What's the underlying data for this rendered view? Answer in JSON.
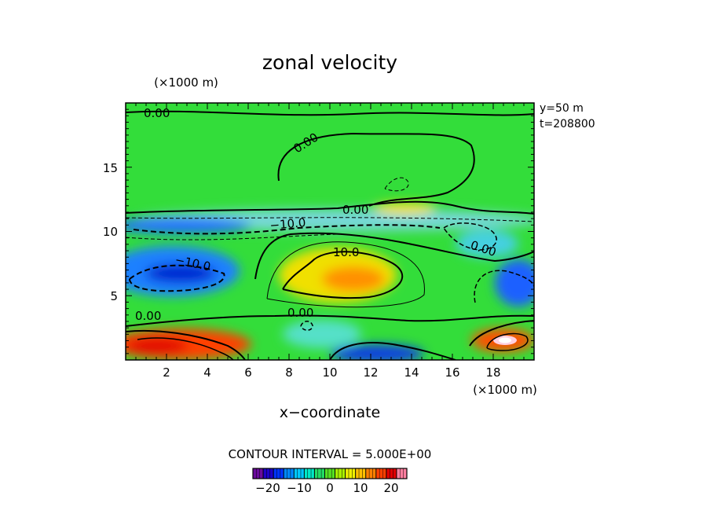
{
  "chart_data": {
    "type": "heatmap",
    "title": "zonal velocity",
    "xlabel": "x−coordinate",
    "x_unit": "(×1000 m)",
    "y_unit": "(×1000 m)",
    "xlim": [
      0,
      20
    ],
    "ylim": [
      0,
      20
    ],
    "x_ticks": [
      "2",
      "4",
      "6",
      "8",
      "10",
      "12",
      "14",
      "16",
      "18"
    ],
    "y_ticks": [
      "5",
      "10",
      "15"
    ],
    "info": [
      "y=50 m",
      "t=208800"
    ],
    "contour_interval": "CONTOUR INTERVAL = 5.000E+00",
    "colorbar": {
      "range": [
        -27,
        27
      ],
      "ticks": [
        "−20",
        "−10",
        "0",
        "10",
        "20"
      ],
      "colors": [
        "#6a0a9c",
        "#1e00c8",
        "#0033ff",
        "#0088ff",
        "#00c8ff",
        "#00e8c8",
        "#22dd66",
        "#55e022",
        "#aaf000",
        "#f0f000",
        "#ffc000",
        "#ff8000",
        "#ff4000",
        "#e00000",
        "#ff7f9f"
      ]
    },
    "contour_labels": [
      "0.00",
      "0.00",
      "0.00",
      "−10.0",
      "−10.0",
      "10.0",
      "0.00",
      "0.00",
      "0.00"
    ],
    "features": [
      {
        "x": 2.5,
        "y": 0.9,
        "value": 22
      },
      {
        "x": 4.5,
        "y": 0.6,
        "value": 18
      },
      {
        "x": 11.2,
        "y": 6.0,
        "value": 14
      },
      {
        "x": 12.8,
        "y": 12.0,
        "value": 7
      },
      {
        "x": 18.6,
        "y": 1.5,
        "value": 27
      },
      {
        "x": 2.8,
        "y": 6.8,
        "value": -17
      },
      {
        "x": 1.5,
        "y": 10.5,
        "value": -12
      },
      {
        "x": 11.5,
        "y": 0.3,
        "value": -13
      },
      {
        "x": 19.5,
        "y": 6.0,
        "value": -16
      },
      {
        "x": 16.5,
        "y": 10.8,
        "value": -10
      },
      {
        "x": 8.8,
        "y": 2.5,
        "value": -5
      }
    ]
  }
}
